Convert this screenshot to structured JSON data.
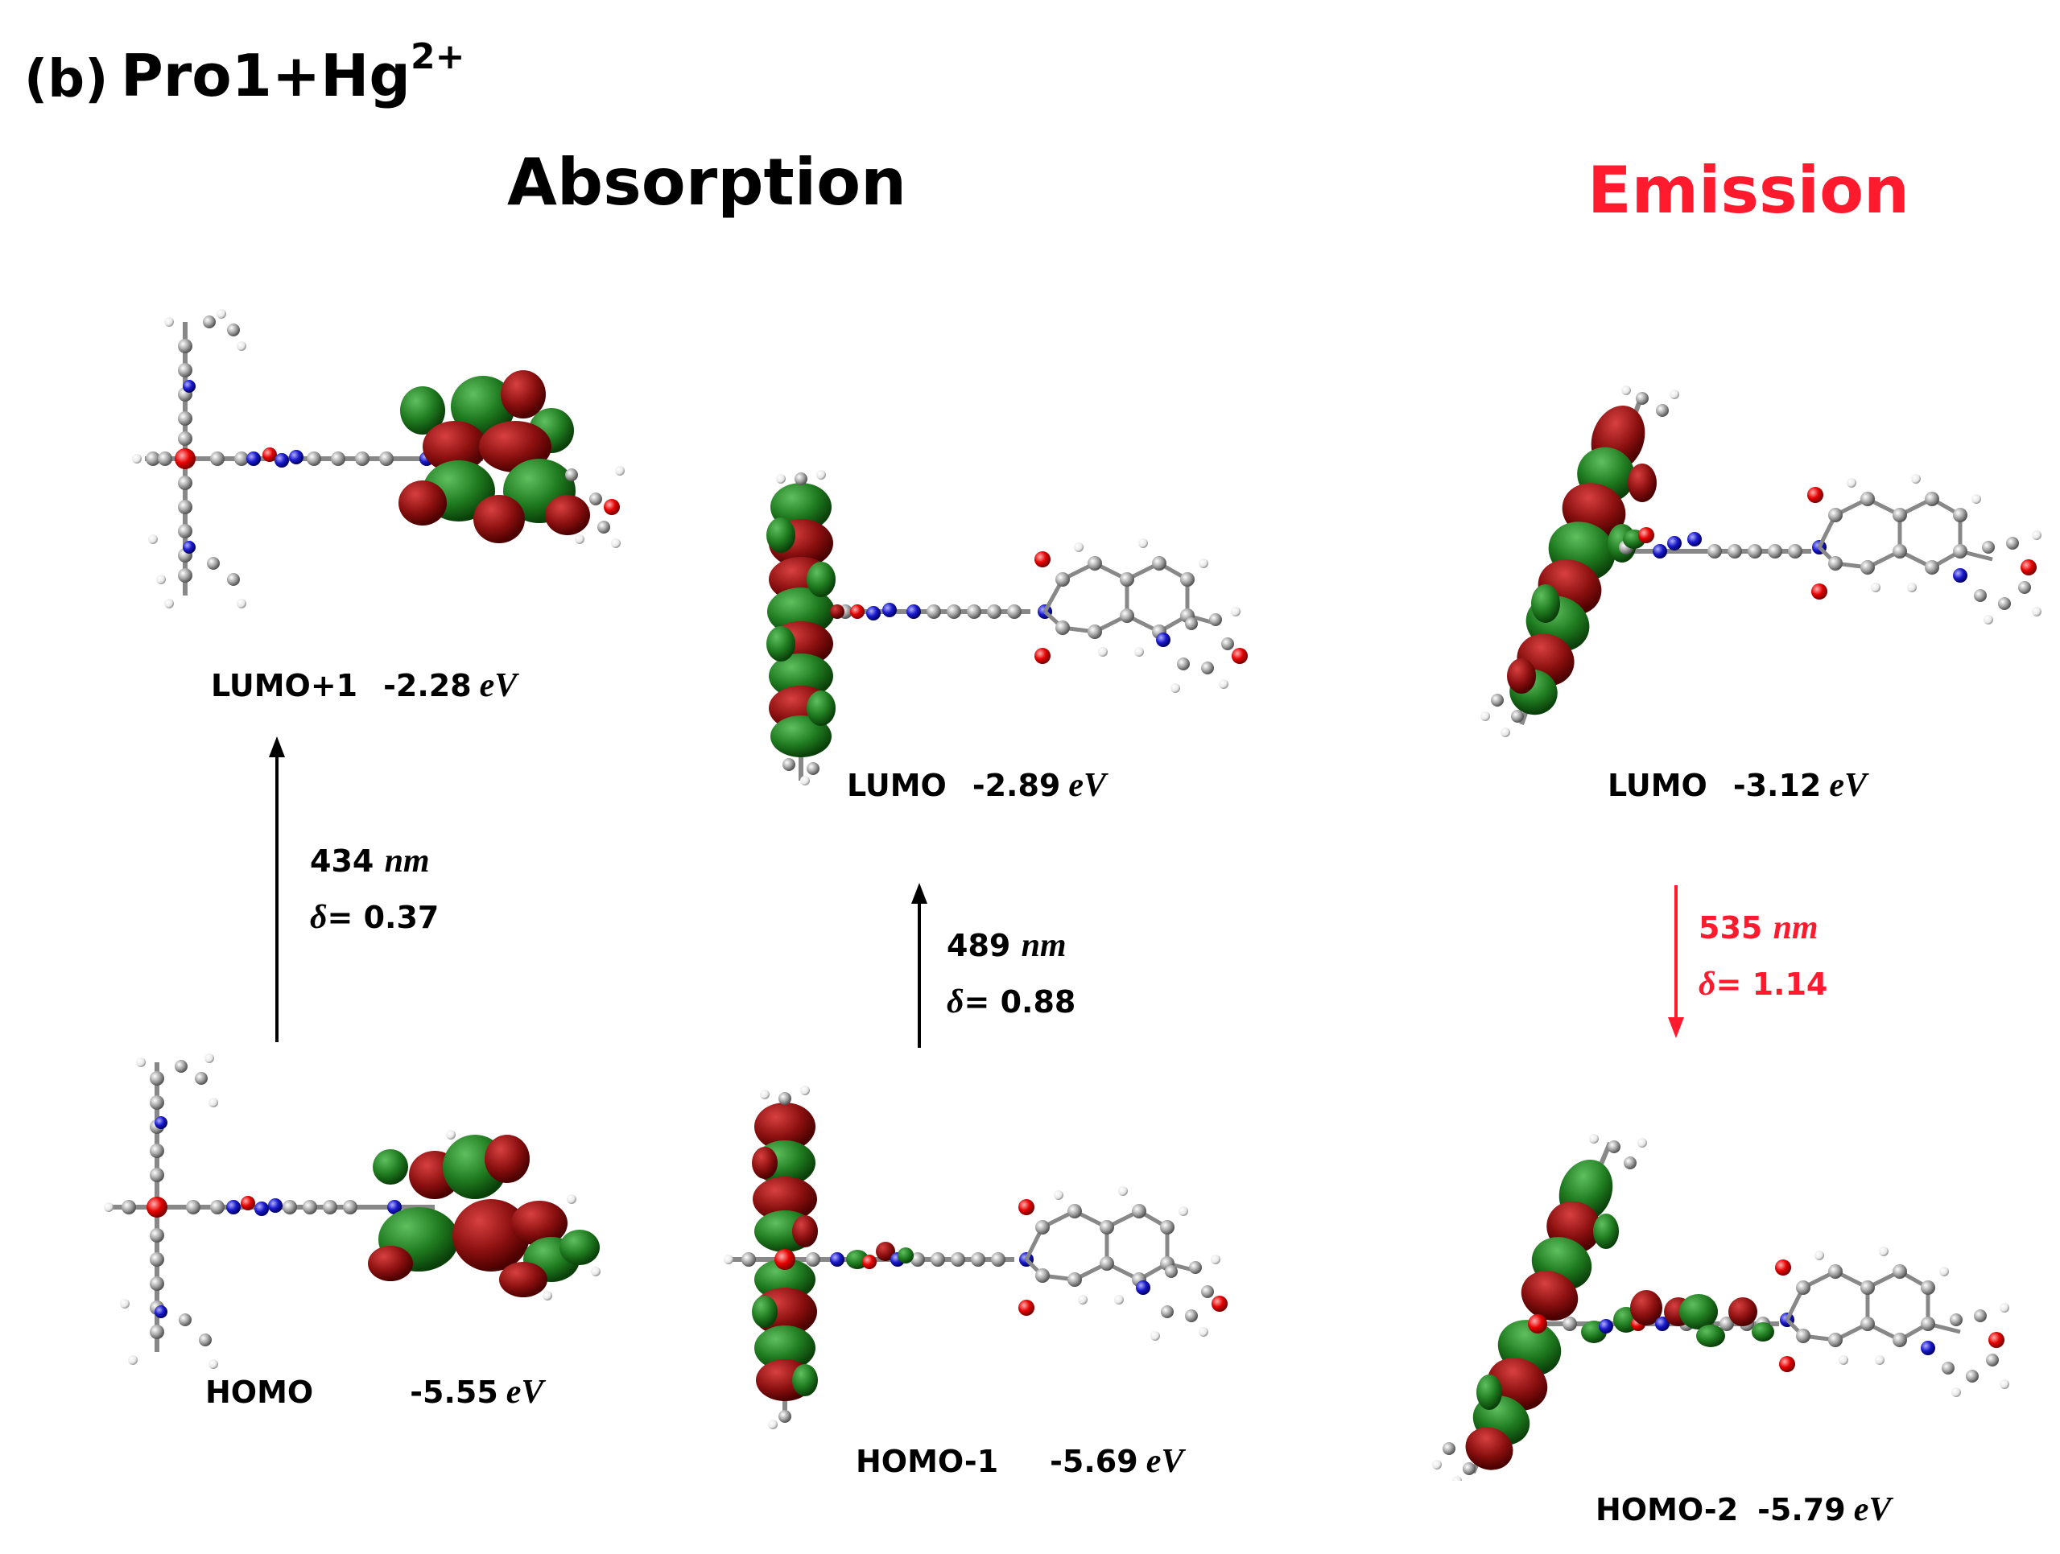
{
  "panel": {
    "label": "(b)",
    "title": "Pro1+Hg",
    "title_sup": "2+"
  },
  "sections": {
    "absorption": "Absorption",
    "emission": "Emission"
  },
  "colors": {
    "text": "#000000",
    "emission": "#ff1a2e",
    "lobe_red": "#8b1010",
    "lobe_green": "#1f7a1f",
    "atom_c": "#9a9a9a",
    "atom_o": "#e60000",
    "atom_n": "#1a1acc",
    "atom_h": "#f2f2f2"
  },
  "orbitals": {
    "lumo_plus1": {
      "name": "LUMO+1",
      "energy": "-2.28",
      "unit": "eV"
    },
    "homo": {
      "name": "HOMO",
      "energy": "-5.55",
      "unit": "eV"
    },
    "lumo_a": {
      "name": "LUMO",
      "energy": "-2.89",
      "unit": "eV"
    },
    "homo_minus1": {
      "name": "HOMO-1",
      "energy": "-5.69",
      "unit": "eV"
    },
    "lumo_e": {
      "name": "LUMO",
      "energy": "-3.12",
      "unit": "eV"
    },
    "homo_minus2": {
      "name": "HOMO-2",
      "energy": "-5.79",
      "unit": "eV"
    }
  },
  "transitions": {
    "t1": {
      "wavelength": "434",
      "unit": "nm",
      "delta_symbol": "δ",
      "delta": "= 0.37",
      "direction": "up"
    },
    "t2": {
      "wavelength": "489",
      "unit": "nm",
      "delta_symbol": "δ",
      "delta": "= 0.88",
      "direction": "up"
    },
    "t3": {
      "wavelength": "535",
      "unit": "nm",
      "delta_symbol": "δ",
      "delta": "= 1.14",
      "direction": "down"
    }
  },
  "icons": {
    "molecule": "molecule-orbital-isosurface-icon"
  }
}
